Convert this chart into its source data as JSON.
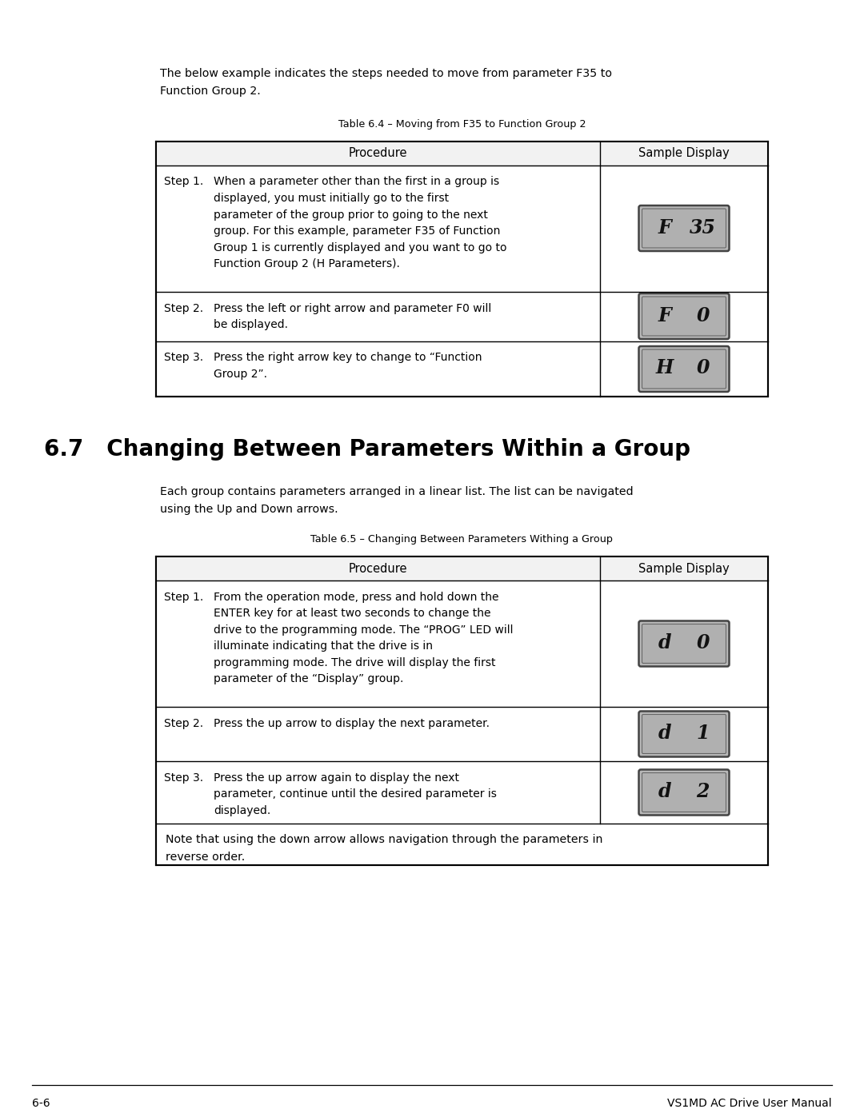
{
  "bg_color": "#ffffff",
  "text_color": "#000000",
  "intro_text_1": "The below example indicates the steps needed to move from parameter F35 to",
  "intro_text_2": "Function Group 2.",
  "table1_title": "Table 6.4 – Moving from F35 to Function Group 2",
  "table1_headers": [
    "Procedure",
    "Sample Display"
  ],
  "table1_rows": [
    {
      "step": "Step 1.",
      "text": "When a parameter other than the first in a group is displayed, you must initially go to the first parameter of the group prior to going to the next group. For this example, parameter F35 of Function Group 1 is currently displayed and you want to go to Function Group 2 (H Parameters).",
      "display_left": "F",
      "display_right": "35"
    },
    {
      "step": "Step 2.",
      "text": "Press the left or right arrow and parameter F0 will be displayed.",
      "display_left": "F",
      "display_right": "0"
    },
    {
      "step": "Step 3.",
      "text": "Press the right arrow key to change to “Function Group 2”.",
      "display_left": "H",
      "display_right": "0"
    }
  ],
  "section_number": "6.7",
  "section_title": "Changing Between Parameters Within a Group",
  "section_text_1": "Each group contains parameters arranged in a linear list. The list can be navigated",
  "section_text_2": "using the Up and Down arrows.",
  "table2_title": "Table 6.5 – Changing Between Parameters Withing a Group",
  "table2_headers": [
    "Procedure",
    "Sample Display"
  ],
  "table2_rows": [
    {
      "step": "Step 1.",
      "text": "From the operation mode, press and hold down the ENTER key for at least two seconds to change the drive to the programming mode. The “PROG” LED will illuminate indicating that the drive is in programming mode. The drive will display the first parameter of the “Display” group.",
      "display_left": "d",
      "display_right": "0"
    },
    {
      "step": "Step 2.",
      "text": "Press the up arrow to display the next parameter.",
      "display_left": "d",
      "display_right": "1"
    },
    {
      "step": "Step 3.",
      "text": "Press the up arrow again to display the next parameter, continue until the desired parameter is displayed.",
      "display_left": "d",
      "display_right": "2"
    }
  ],
  "table2_note": "Note that using the down arrow allows navigation through the parameters in\nreverse order.",
  "footer_left": "6-6",
  "footer_right": "VS1MD AC Drive User Manual",
  "fig_width": 10.8,
  "fig_height": 13.97,
  "dpi": 100
}
